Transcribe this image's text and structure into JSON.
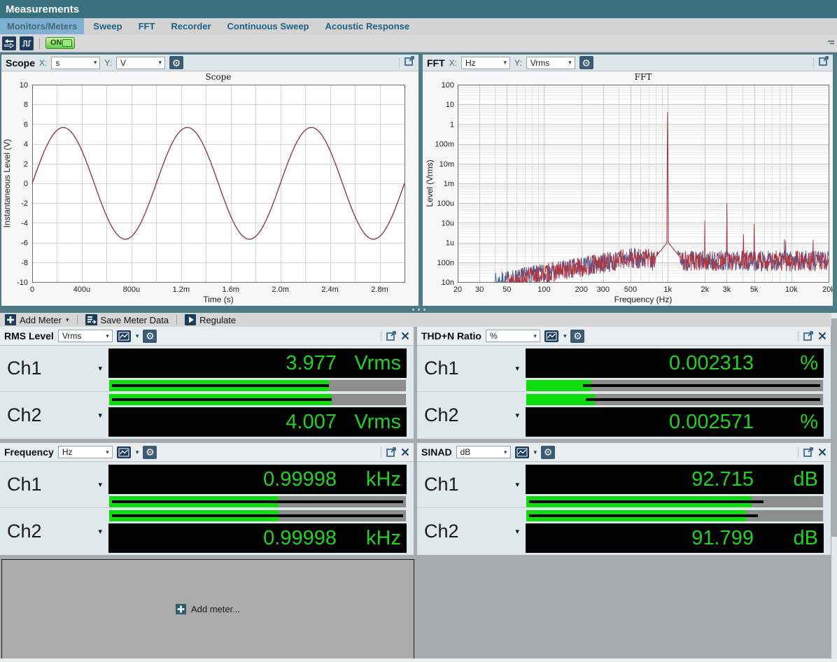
{
  "app": {
    "title": "Measurements"
  },
  "tabs": [
    {
      "label": "Monitors/Meters",
      "selected": true
    },
    {
      "label": "Sweep",
      "selected": false
    },
    {
      "label": "FFT",
      "selected": false
    },
    {
      "label": "Recorder",
      "selected": false
    },
    {
      "label": "Continuous Sweep",
      "selected": false
    },
    {
      "label": "Acoustic Response",
      "selected": false
    }
  ],
  "top_toolbar": {
    "on_label": "ON"
  },
  "chart_panels": {
    "scope": {
      "title": "Scope",
      "x_label": "X:",
      "x_unit": "s",
      "y_label": "Y:",
      "y_unit": "V"
    },
    "fft": {
      "title": "FFT",
      "x_label": "X:",
      "x_unit": "Hz",
      "y_label": "Y:",
      "y_unit": "Vrms"
    }
  },
  "chart_data": [
    {
      "id": "scope",
      "type": "line",
      "title": "Scope",
      "xlabel": "Time (s)",
      "ylabel": "Instantaneous Level (V)",
      "xlim": [
        0,
        0.003
      ],
      "ylim": [
        -10,
        10
      ],
      "x_grid_step": 0.0002,
      "y_tick_step": 2,
      "x_ticks": [
        [
          0,
          "0"
        ],
        [
          0.0004,
          "400u"
        ],
        [
          0.0008,
          "800u"
        ],
        [
          0.0012,
          "1.2m"
        ],
        [
          0.0016,
          "1.6m"
        ],
        [
          0.002,
          "2.0m"
        ],
        [
          0.0024,
          "2.4m"
        ],
        [
          0.0028,
          "2.8m"
        ]
      ],
      "series": [
        {
          "name": "Ch1",
          "color": "#3f5f9f",
          "waveform": "sine",
          "amplitude_v": 5.66,
          "frequency_hz": 1000,
          "phase_deg": 0
        },
        {
          "name": "Ch2",
          "color": "#9d2f44",
          "waveform": "sine",
          "amplitude_v": 5.66,
          "frequency_hz": 1000,
          "phase_deg": 0
        }
      ]
    },
    {
      "id": "fft",
      "type": "line",
      "scale": "log-log",
      "title": "FFT",
      "xlabel": "Frequency (Hz)",
      "ylabel": "Level (Vrms)",
      "xlim": [
        20,
        20000
      ],
      "ylim": [
        1e-08,
        100
      ],
      "x_ticks": [
        [
          20,
          "20"
        ],
        [
          30,
          "30"
        ],
        [
          50,
          "50"
        ],
        [
          100,
          "100"
        ],
        [
          200,
          "200"
        ],
        [
          300,
          "300"
        ],
        [
          500,
          "500"
        ],
        [
          1000,
          "1k"
        ],
        [
          2000,
          "2k"
        ],
        [
          3000,
          "3k"
        ],
        [
          5000,
          "5k"
        ],
        [
          10000,
          "10k"
        ],
        [
          20000,
          "20k"
        ]
      ],
      "y_ticks": [
        [
          100,
          "100"
        ],
        [
          10,
          "10"
        ],
        [
          1,
          "1"
        ],
        [
          0.1,
          "100m"
        ],
        [
          0.01,
          "10m"
        ],
        [
          0.001,
          "1m"
        ],
        [
          0.0001,
          "100u"
        ],
        [
          1e-05,
          "10u"
        ],
        [
          1e-06,
          "1u"
        ],
        [
          1e-07,
          "100n"
        ],
        [
          1e-08,
          "10n"
        ]
      ],
      "noise": {
        "ref_hz": 36,
        "slope": 1.15,
        "cap": 2e-07,
        "knee_hz": 700,
        "flat": 1.45e-07,
        "jitter_decades": 1.05,
        "jitter_offset": -0.62
      },
      "skirt": {
        "w1": 0.0045,
        "l1": -6,
        "w2": 0.1,
        "l2": -6.75
      },
      "series": [
        {
          "name": "Ch1",
          "color": "#3f5f9f",
          "start_hz": 40,
          "seed": 7,
          "fundamental_hz": 1000,
          "fundamental_vrms": 3.977,
          "harmonics": [
            [
              3000,
              5e-05
            ],
            [
              9000,
              1.2e-06
            ]
          ]
        },
        {
          "name": "Ch2",
          "color": "#b5323c",
          "start_hz": 48,
          "seed": 13,
          "fundamental_hz": 1000,
          "fundamental_vrms": 4.007,
          "harmonics": [
            [
              2000,
              1.3e-05
            ],
            [
              3000,
              0.0001
            ],
            [
              4100,
              2.6e-06
            ],
            [
              5000,
              9e-06
            ],
            [
              8800,
              1.5e-06
            ],
            [
              15000,
              1.4e-06
            ]
          ]
        }
      ]
    }
  ],
  "meter_toolbar": {
    "add_meter": "Add Meter",
    "save_meter_data": "Save Meter Data",
    "regulate": "Regulate"
  },
  "meters": [
    {
      "id": "rms",
      "title": "RMS Level",
      "unit": "Vrms",
      "channels": [
        {
          "label": "Ch1",
          "value": "3.977",
          "unit": "Vrms",
          "bar_pct": 74,
          "stripe_start_pct": 1,
          "stripe_end_pct": 74
        },
        {
          "label": "Ch2",
          "value": "4.007",
          "unit": "Vrms",
          "bar_pct": 75,
          "stripe_start_pct": 1,
          "stripe_end_pct": 75
        }
      ]
    },
    {
      "id": "thdn",
      "title": "THD+N Ratio",
      "unit": "%",
      "channels": [
        {
          "label": "Ch1",
          "value": "0.002313",
          "unit": "%",
          "bar_pct": 22,
          "stripe_start_pct": 19,
          "stripe_end_pct": 99
        },
        {
          "label": "Ch2",
          "value": "0.002571",
          "unit": "%",
          "bar_pct": 23,
          "stripe_start_pct": 20,
          "stripe_end_pct": 99
        }
      ]
    },
    {
      "id": "frequency",
      "title": "Frequency",
      "unit": "Hz",
      "channels": [
        {
          "label": "Ch1",
          "value": "0.99998",
          "unit": "kHz",
          "bar_pct": 57,
          "stripe_start_pct": 1,
          "stripe_end_pct": 99
        },
        {
          "label": "Ch2",
          "value": "0.99998",
          "unit": "kHz",
          "bar_pct": 57,
          "stripe_start_pct": 1,
          "stripe_end_pct": 99
        }
      ]
    },
    {
      "id": "sinad",
      "title": "SINAD",
      "unit": "dB",
      "channels": [
        {
          "label": "Ch1",
          "value": "92.715",
          "unit": "dB",
          "bar_pct": 76,
          "stripe_start_pct": 1,
          "stripe_end_pct": 80
        },
        {
          "label": "Ch2",
          "value": "91.799",
          "unit": "dB",
          "bar_pct": 74,
          "stripe_start_pct": 1,
          "stripe_end_pct": 78
        }
      ]
    }
  ],
  "add_meter_placeholder": "Add meter...",
  "glyphs": {
    "caret": "▾",
    "gear": "⚙"
  },
  "colors": {
    "titlebar": "#397180",
    "window_teal": "#4e7b87",
    "selected_tab_bg": "#7fb0d2",
    "meter_value_green": "#23d123",
    "bar_green": "#0ddd0d",
    "scope_trace": "#9d2f44",
    "fft_ch1_trace": "#3f5f9f",
    "fft_ch2_trace": "#b5323c"
  }
}
